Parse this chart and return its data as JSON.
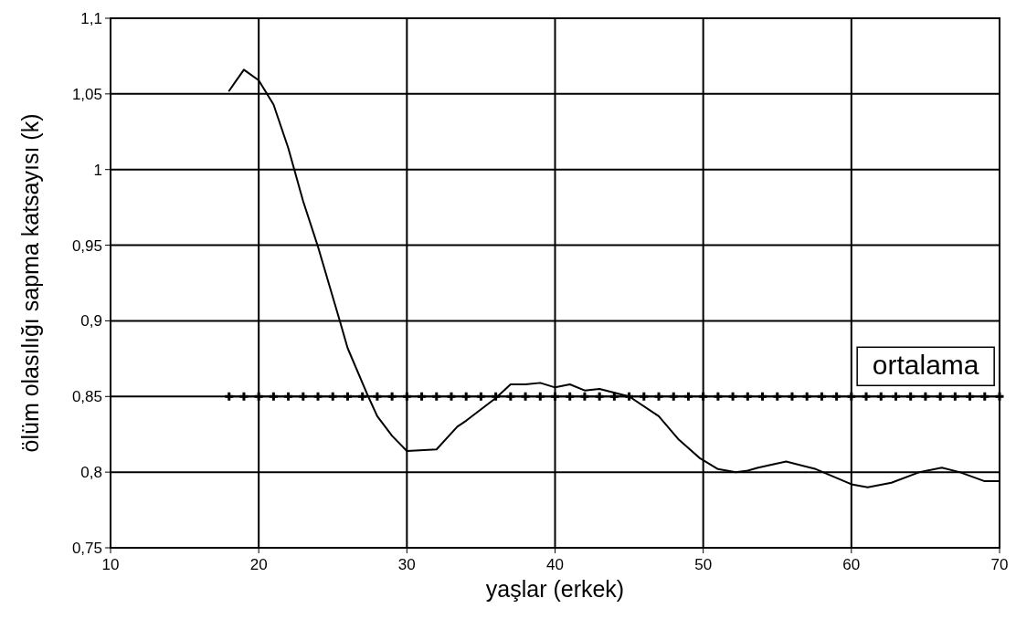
{
  "chart_data": {
    "type": "line",
    "xlabel": "yaşlar (erkek)",
    "ylabel": "ölüm olasılığı sapma katsayısı (k)",
    "xlim": [
      10,
      70
    ],
    "xticks": [
      10,
      20,
      30,
      40,
      50,
      60,
      70
    ],
    "ylim": [
      0.75,
      1.1
    ],
    "yticks": [
      {
        "value": 0.75,
        "label": "0,75"
      },
      {
        "value": 0.8,
        "label": "0,8"
      },
      {
        "value": 0.85,
        "label": "0,85"
      },
      {
        "value": 0.9,
        "label": "0,9"
      },
      {
        "value": 0.95,
        "label": "0,95"
      },
      {
        "value": 1,
        "label": "1"
      },
      {
        "value": 1.05,
        "label": "1,05"
      },
      {
        "value": 1.1,
        "label": "1,1"
      }
    ],
    "grid": true,
    "line_style": "solid",
    "series": [
      {
        "color": "#000000",
        "marker": "none",
        "x": [
          18,
          19,
          20,
          21,
          22,
          23,
          24,
          25.5,
          26,
          27.3,
          28,
          29,
          30,
          32,
          33.4,
          34,
          36,
          37,
          38,
          39,
          40,
          41,
          42,
          43,
          45,
          47,
          48.3,
          49.8,
          51,
          52.2,
          53,
          53.7,
          55.6,
          57.6,
          60,
          61.1,
          62.7,
          64.6,
          66.1,
          67.3,
          69,
          70
        ],
        "values": [
          1.052,
          1.066,
          1.059,
          1.043,
          1.014,
          0.979,
          0.949,
          0.899,
          0.882,
          0.852,
          0.837,
          0.824,
          0.814,
          0.815,
          0.83,
          0.834,
          0.849,
          0.858,
          0.858,
          0.859,
          0.856,
          0.858,
          0.854,
          0.855,
          0.85,
          0.837,
          0.822,
          0.809,
          0.802,
          0.8,
          0.801,
          0.803,
          0.807,
          0.802,
          0.792,
          0.79,
          0.793,
          0.8,
          0.803,
          0.8,
          0.794,
          0.794
        ]
      },
      {
        "name": "ortalama",
        "color": "#000000",
        "marker": "cross",
        "x": [
          18,
          19,
          20,
          21,
          22,
          23,
          24,
          25,
          26,
          27,
          28,
          29,
          30,
          31,
          32,
          33,
          34,
          35,
          36,
          37,
          38,
          39,
          40,
          41,
          42,
          43,
          44,
          45,
          46,
          47,
          48,
          49,
          50,
          51,
          52,
          53,
          54,
          55,
          56,
          57,
          58,
          59,
          60,
          61,
          62,
          63,
          64,
          65,
          66,
          67,
          68,
          69,
          70
        ],
        "values": [
          0.85,
          0.85,
          0.85,
          0.85,
          0.85,
          0.85,
          0.85,
          0.85,
          0.85,
          0.85,
          0.85,
          0.85,
          0.85,
          0.85,
          0.85,
          0.85,
          0.85,
          0.85,
          0.85,
          0.85,
          0.85,
          0.85,
          0.85,
          0.85,
          0.85,
          0.85,
          0.85,
          0.85,
          0.85,
          0.85,
          0.85,
          0.85,
          0.85,
          0.85,
          0.85,
          0.85,
          0.85,
          0.85,
          0.85,
          0.85,
          0.85,
          0.85,
          0.85,
          0.85,
          0.85,
          0.85,
          0.85,
          0.85,
          0.85,
          0.85,
          0.85,
          0.85,
          0.85
        ]
      }
    ]
  }
}
